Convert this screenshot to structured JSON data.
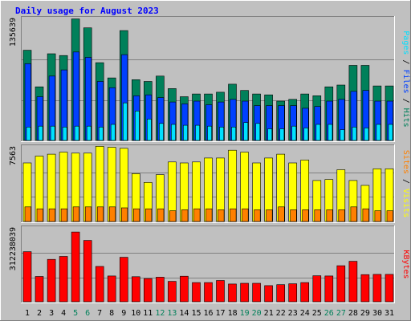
{
  "title": "Daily usage for August 2023",
  "colors": {
    "background": "#c0c0c0",
    "panel": "#c0c0c0",
    "grid": "#808080",
    "title": "#0000ff",
    "hits": "#00805a",
    "files": "#0040ff",
    "pages": "#00e0ff",
    "visits": "#ffff00",
    "sites": "#ff8000",
    "kbytes": "#ff0000",
    "weekend_day": "#00805a",
    "weekday": "#000000"
  },
  "chart_data": [
    {
      "type": "bar",
      "panel": "hits-files-pages",
      "ylabel_parts": [
        "Pages",
        "Files",
        "Hits"
      ],
      "ymax_label": "135639",
      "ylim": [
        0,
        135639
      ],
      "x": [
        1,
        2,
        3,
        4,
        5,
        6,
        7,
        8,
        9,
        10,
        11,
        12,
        13,
        14,
        15,
        16,
        17,
        18,
        19,
        20,
        21,
        22,
        23,
        24,
        25,
        26,
        27,
        28,
        29,
        30,
        31
      ],
      "series": [
        {
          "name": "Hits",
          "values": [
            101000,
            60000,
            97000,
            95000,
            136000,
            126000,
            87000,
            70000,
            123000,
            68000,
            66000,
            72000,
            58000,
            49000,
            52000,
            52000,
            54000,
            63000,
            56000,
            52000,
            51000,
            44000,
            46000,
            52000,
            50000,
            60000,
            62000,
            84000,
            84000,
            61000,
            61000
          ]
        },
        {
          "name": "Files",
          "values": [
            86000,
            49000,
            72000,
            79000,
            99000,
            93000,
            66000,
            59000,
            96000,
            50000,
            51000,
            48000,
            43000,
            41000,
            44000,
            40000,
            43000,
            46000,
            44000,
            39000,
            39000,
            39000,
            39000,
            36000,
            38000,
            44000,
            46000,
            55000,
            56000,
            44000,
            44000
          ]
        },
        {
          "name": "Pages",
          "values": [
            15000,
            16000,
            16000,
            15000,
            16000,
            16000,
            15000,
            18000,
            42000,
            33000,
            24000,
            19000,
            18000,
            17000,
            17000,
            16000,
            15000,
            15000,
            20000,
            19000,
            13000,
            13000,
            16000,
            14000,
            18000,
            18000,
            12000,
            15000,
            14000,
            18000,
            18000
          ]
        }
      ]
    },
    {
      "type": "bar",
      "panel": "visits-sites",
      "ylabel_parts": [
        "Sites",
        "Visits"
      ],
      "ymax_label": "7563",
      "ylim": [
        0,
        7563
      ],
      "x": [
        1,
        2,
        3,
        4,
        5,
        6,
        7,
        8,
        9,
        10,
        11,
        12,
        13,
        14,
        15,
        16,
        17,
        18,
        19,
        20,
        21,
        22,
        23,
        24,
        25,
        26,
        27,
        28,
        29,
        30,
        31
      ],
      "series": [
        {
          "name": "Visits",
          "values": [
            6000,
            6700,
            6900,
            7100,
            7000,
            7000,
            7700,
            7600,
            7500,
            4900,
            4000,
            4800,
            6100,
            6000,
            6100,
            6500,
            6500,
            7300,
            7100,
            6000,
            6500,
            6900,
            6000,
            6300,
            4200,
            4300,
            5300,
            4200,
            3700,
            5400,
            5400
          ]
        },
        {
          "name": "Sites",
          "values": [
            1500,
            1300,
            1300,
            1300,
            1500,
            1500,
            1500,
            1500,
            1400,
            1300,
            1300,
            1300,
            1100,
            1200,
            1300,
            1300,
            1200,
            1300,
            1300,
            1200,
            1200,
            1500,
            1200,
            1200,
            1200,
            1200,
            1200,
            1500,
            1300,
            1100,
            1100
          ]
        }
      ]
    },
    {
      "type": "bar",
      "panel": "kbytes",
      "ylabel_parts": [
        "KBytes"
      ],
      "ymax_label": "312238039",
      "ylim": [
        0,
        312238039
      ],
      "x": [
        1,
        2,
        3,
        4,
        5,
        6,
        7,
        8,
        9,
        10,
        11,
        12,
        13,
        14,
        15,
        16,
        17,
        18,
        19,
        20,
        21,
        22,
        23,
        24,
        25,
        26,
        27,
        28,
        29,
        30,
        31
      ],
      "series": [
        {
          "name": "KBytes",
          "values": [
            214000000,
            108000000,
            181000000,
            194000000,
            298000000,
            262000000,
            151000000,
            110000000,
            190000000,
            107000000,
            99000000,
            105000000,
            87000000,
            109000000,
            82000000,
            82000000,
            91000000,
            76000000,
            79000000,
            79000000,
            69000000,
            73000000,
            77000000,
            82000000,
            111000000,
            110000000,
            154000000,
            173000000,
            116000000,
            117000000,
            117000000
          ]
        }
      ]
    }
  ],
  "day_labels": [
    "1",
    "2",
    "3",
    "4",
    "5",
    "6",
    "7",
    "8",
    "9",
    "10",
    "11",
    "12",
    "13",
    "14",
    "15",
    "16",
    "17",
    "18",
    "19",
    "20",
    "21",
    "22",
    "23",
    "24",
    "25",
    "26",
    "27",
    "28",
    "29",
    "30",
    "31"
  ],
  "weekend_days": [
    5,
    6,
    12,
    13,
    19,
    20,
    26,
    27
  ]
}
